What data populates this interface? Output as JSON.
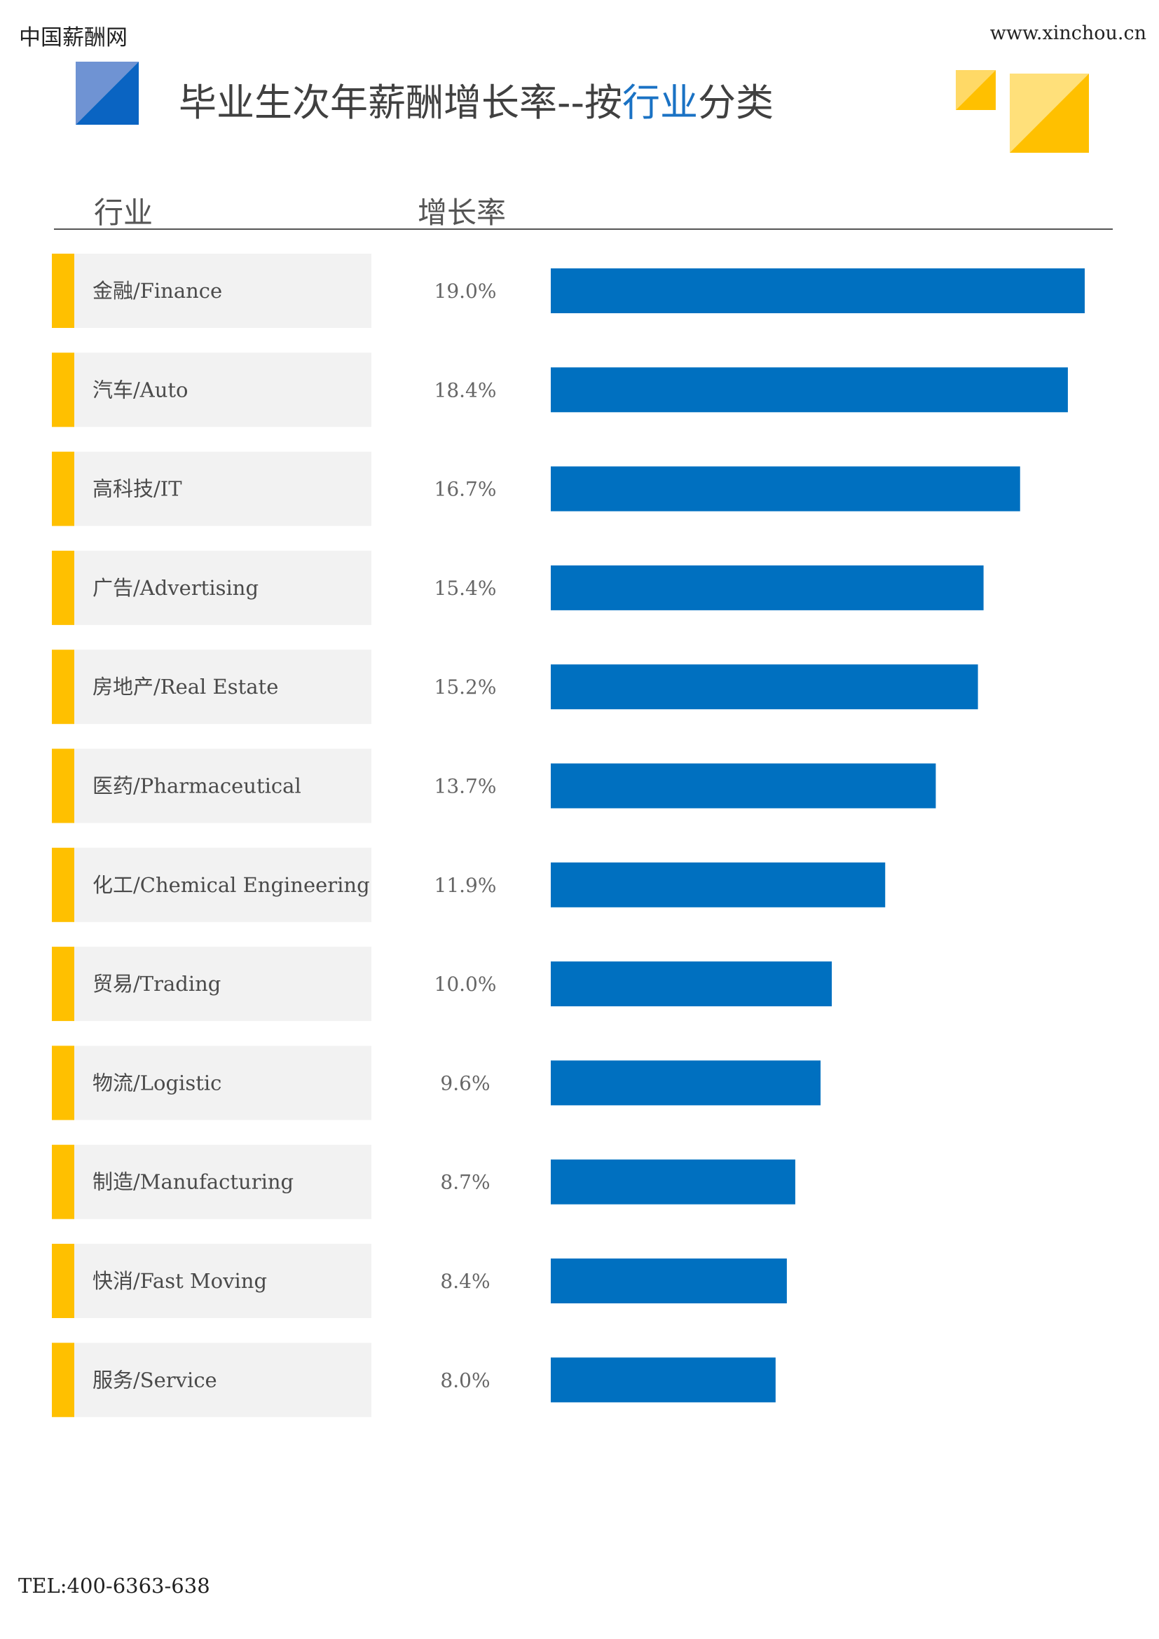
{
  "header": {
    "brand": "中国薪酬网",
    "website": "www.xinchou.cn",
    "title_parts": [
      "毕业生次年薪酬增长率--按",
      "行业",
      "分类"
    ]
  },
  "table_header": {
    "industry": "行业",
    "rate": "增长率"
  },
  "footer": {
    "tel": "TEL:400-6363-638"
  },
  "colors": {
    "bar": "#0070c0",
    "accent_yellow": "#ffc000",
    "label_bg": "#f2f2f2",
    "title_highlight": "#1a72c4"
  },
  "chart_data": {
    "type": "bar",
    "orientation": "horizontal",
    "categories": [
      "金融/Finance",
      "汽车/Auto",
      "高科技/IT",
      "广告/Advertising",
      "房地产/Real Estate",
      "医药/Pharmaceutical",
      "化工/Chemical Engineering",
      "贸易/Trading",
      "物流/Logistic",
      "制造/Manufacturing",
      "快消/Fast Moving",
      "服务/Service"
    ],
    "values": [
      19.0,
      18.4,
      16.7,
      15.4,
      15.2,
      13.7,
      11.9,
      10.0,
      9.6,
      8.7,
      8.4,
      8.0
    ],
    "value_labels": [
      "19.0%",
      "18.4%",
      "16.7%",
      "15.4%",
      "15.2%",
      "13.7%",
      "11.9%",
      "10.0%",
      "9.6%",
      "8.7%",
      "8.4%",
      "8.0%"
    ],
    "xlim": [
      0,
      19.0
    ],
    "grid": false,
    "legend": "none"
  }
}
